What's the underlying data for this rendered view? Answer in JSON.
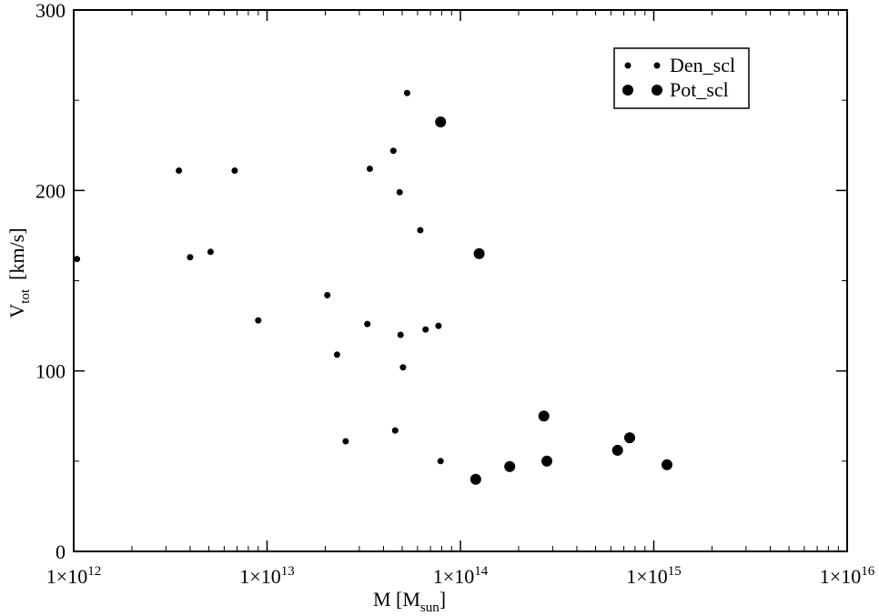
{
  "chart_data": {
    "type": "scatter",
    "xlabel_main": "M [M",
    "xlabel_sub": "sun",
    "xlabel_end": "]",
    "ylabel_main": "V",
    "ylabel_sub": "tot",
    "ylabel_unit": "[km/s]",
    "xscale": "log",
    "xlim": [
      1000000000000.0,
      1e+16
    ],
    "ylim": [
      0,
      300
    ],
    "x_tick_labels": [
      {
        "base": "1×10",
        "exp": "12"
      },
      {
        "base": "1×10",
        "exp": "13"
      },
      {
        "base": "1×10",
        "exp": "14"
      },
      {
        "base": "1×10",
        "exp": "15"
      },
      {
        "base": "1×10",
        "exp": "16"
      }
    ],
    "y_tick_labels": [
      "0",
      "100",
      "200",
      "300"
    ],
    "legend_position": "top-right",
    "series": [
      {
        "name": "Den_scl",
        "marker": "small-dot",
        "color": "#000000",
        "points": [
          [
            1040000000000.0,
            162
          ],
          [
            3500000000000.0,
            211
          ],
          [
            4000000000000.0,
            163
          ],
          [
            5100000000000.0,
            166
          ],
          [
            6800000000000.0,
            211
          ],
          [
            9000000000000.0,
            128
          ],
          [
            20500000000000.0,
            142
          ],
          [
            23000000000000.0,
            109
          ],
          [
            25500000000000.0,
            61
          ],
          [
            33000000000000.0,
            126
          ],
          [
            34000000000000.0,
            212
          ],
          [
            45000000000000.0,
            222
          ],
          [
            46000000000000.0,
            67
          ],
          [
            48500000000000.0,
            199
          ],
          [
            49000000000000.0,
            120
          ],
          [
            50500000000000.0,
            102
          ],
          [
            53000000000000.0,
            254
          ],
          [
            62000000000000.0,
            178
          ],
          [
            66000000000000.0,
            123
          ],
          [
            77000000000000.0,
            125
          ],
          [
            79000000000000.0,
            50
          ]
        ]
      },
      {
        "name": "Pot_scl",
        "marker": "large-dot",
        "color": "#000000",
        "points": [
          [
            79000000000000.0,
            238
          ],
          [
            120000000000000.0,
            40
          ],
          [
            125000000000000.0,
            165
          ],
          [
            180000000000000.0,
            47
          ],
          [
            270000000000000.0,
            75
          ],
          [
            280000000000000.0,
            50
          ],
          [
            650000000000000.0,
            56
          ],
          [
            750000000000000.0,
            63
          ],
          [
            1170000000000000.0,
            48
          ]
        ]
      }
    ]
  }
}
